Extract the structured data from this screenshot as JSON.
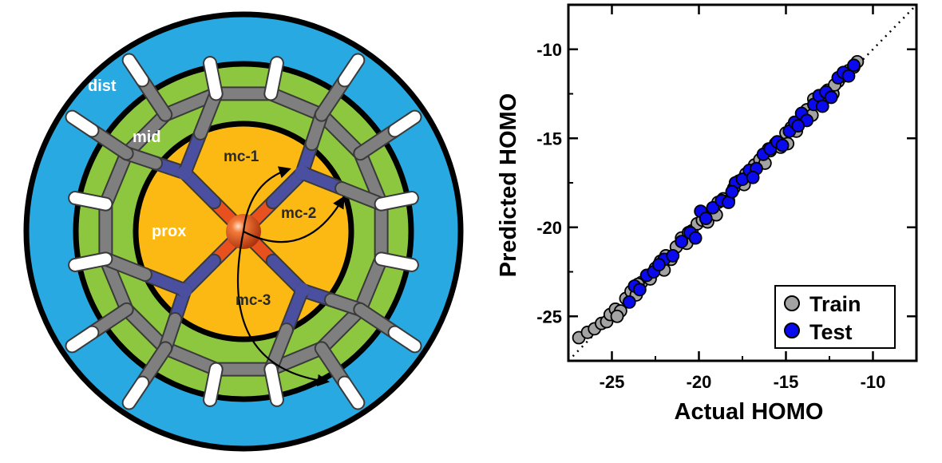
{
  "diagram": {
    "regions": {
      "dist": "dist",
      "mid": "mid",
      "prox": "prox"
    },
    "metal_labels": {
      "mc1": "mc-1",
      "mc2": "mc-2",
      "mc3": "mc-3"
    },
    "colors": {
      "dist": "#29a9e1",
      "mid": "#8dc63f",
      "prox": "#fdb913",
      "carbon": "#7f7f7f",
      "nitrogen": "#4a4fa0",
      "hydrogen": "#ffffff",
      "metal": "#e8501e"
    }
  },
  "chart_data": {
    "type": "scatter",
    "title": "",
    "xlabel": "Actual HOMO",
    "ylabel": "Predicted HOMO",
    "xlim": [
      -27.5,
      -7.5
    ],
    "ylim": [
      -27.5,
      -7.5
    ],
    "xticks": [
      -25,
      -20,
      -15,
      -10
    ],
    "yticks": [
      -25,
      -20,
      -15,
      -10
    ],
    "grid": false,
    "legend_position": "bottom-right",
    "parity_line": true,
    "series": [
      {
        "name": "Train",
        "color": "#a3a3a3",
        "points": [
          [
            -26.9,
            -26.2
          ],
          [
            -26.4,
            -25.9
          ],
          [
            -26.0,
            -25.7
          ],
          [
            -25.6,
            -25.4
          ],
          [
            -25.3,
            -25.3
          ],
          [
            -25.1,
            -24.9
          ],
          [
            -24.8,
            -24.6
          ],
          [
            -24.5,
            -24.7
          ],
          [
            -24.2,
            -24.0
          ],
          [
            -23.9,
            -23.6
          ],
          [
            -23.6,
            -23.8
          ],
          [
            -23.3,
            -23.1
          ],
          [
            -23.0,
            -22.8
          ],
          [
            -22.8,
            -22.9
          ],
          [
            -22.5,
            -22.3
          ],
          [
            -22.2,
            -21.9
          ],
          [
            -21.9,
            -21.6
          ],
          [
            -21.6,
            -21.8
          ],
          [
            -21.3,
            -21.1
          ],
          [
            -21.0,
            -20.6
          ],
          [
            -20.7,
            -20.9
          ],
          [
            -20.4,
            -20.2
          ],
          [
            -20.1,
            -19.8
          ],
          [
            -19.8,
            -19.6
          ],
          [
            -19.5,
            -19.7
          ],
          [
            -19.2,
            -19.0
          ],
          [
            -18.9,
            -18.6
          ],
          [
            -18.6,
            -18.4
          ],
          [
            -18.3,
            -18.5
          ],
          [
            -18.0,
            -17.8
          ],
          [
            -17.7,
            -17.4
          ],
          [
            -17.4,
            -17.6
          ],
          [
            -17.1,
            -16.9
          ],
          [
            -16.8,
            -16.5
          ],
          [
            -16.5,
            -16.2
          ],
          [
            -16.2,
            -16.4
          ],
          [
            -15.9,
            -15.7
          ],
          [
            -15.6,
            -15.3
          ],
          [
            -15.3,
            -15.5
          ],
          [
            -15.0,
            -14.7
          ],
          [
            -14.7,
            -14.4
          ],
          [
            -14.4,
            -14.6
          ],
          [
            -14.1,
            -13.9
          ],
          [
            -13.8,
            -13.4
          ],
          [
            -13.5,
            -13.7
          ],
          [
            -13.2,
            -13.0
          ],
          [
            -12.9,
            -12.6
          ],
          [
            -12.6,
            -12.3
          ],
          [
            -12.3,
            -12.5
          ],
          [
            -12.0,
            -11.8
          ],
          [
            -11.7,
            -11.5
          ],
          [
            -11.4,
            -11.2
          ],
          [
            -11.1,
            -11.0
          ],
          [
            -10.9,
            -10.7
          ],
          [
            -13.4,
            -12.8
          ],
          [
            -14.9,
            -15.3
          ],
          [
            -16.0,
            -15.6
          ],
          [
            -17.3,
            -17.0
          ],
          [
            -19.0,
            -19.3
          ],
          [
            -20.6,
            -20.3
          ],
          [
            -22.0,
            -22.4
          ],
          [
            -23.5,
            -23.2
          ],
          [
            -24.7,
            -25.0
          ],
          [
            -12.2,
            -12.0
          ]
        ]
      },
      {
        "name": "Test",
        "color": "#0a0aee",
        "points": [
          [
            -24.0,
            -24.2
          ],
          [
            -23.7,
            -23.3
          ],
          [
            -23.4,
            -23.5
          ],
          [
            -23.0,
            -22.7
          ],
          [
            -22.6,
            -22.5
          ],
          [
            -22.0,
            -21.8
          ],
          [
            -21.5,
            -21.6
          ],
          [
            -21.0,
            -20.8
          ],
          [
            -20.5,
            -20.3
          ],
          [
            -19.9,
            -19.1
          ],
          [
            -19.6,
            -19.5
          ],
          [
            -19.2,
            -18.9
          ],
          [
            -18.7,
            -18.5
          ],
          [
            -18.3,
            -18.6
          ],
          [
            -17.9,
            -17.5
          ],
          [
            -17.5,
            -17.3
          ],
          [
            -17.1,
            -16.8
          ],
          [
            -16.7,
            -16.7
          ],
          [
            -16.3,
            -15.9
          ],
          [
            -15.9,
            -15.6
          ],
          [
            -15.5,
            -15.2
          ],
          [
            -15.2,
            -15.4
          ],
          [
            -14.8,
            -14.6
          ],
          [
            -14.5,
            -14.1
          ],
          [
            -14.1,
            -13.6
          ],
          [
            -13.8,
            -14.0
          ],
          [
            -13.4,
            -13.1
          ],
          [
            -13.1,
            -12.6
          ],
          [
            -12.7,
            -12.4
          ],
          [
            -12.4,
            -12.7
          ],
          [
            -12.0,
            -11.6
          ],
          [
            -11.7,
            -11.3
          ],
          [
            -11.4,
            -11.5
          ],
          [
            -11.1,
            -10.9
          ],
          [
            -18.1,
            -18.0
          ],
          [
            -16.9,
            -17.2
          ],
          [
            -14.3,
            -14.3
          ],
          [
            -12.9,
            -13.2
          ],
          [
            -20.2,
            -20.6
          ],
          [
            -22.3,
            -22.1
          ]
        ]
      }
    ]
  }
}
